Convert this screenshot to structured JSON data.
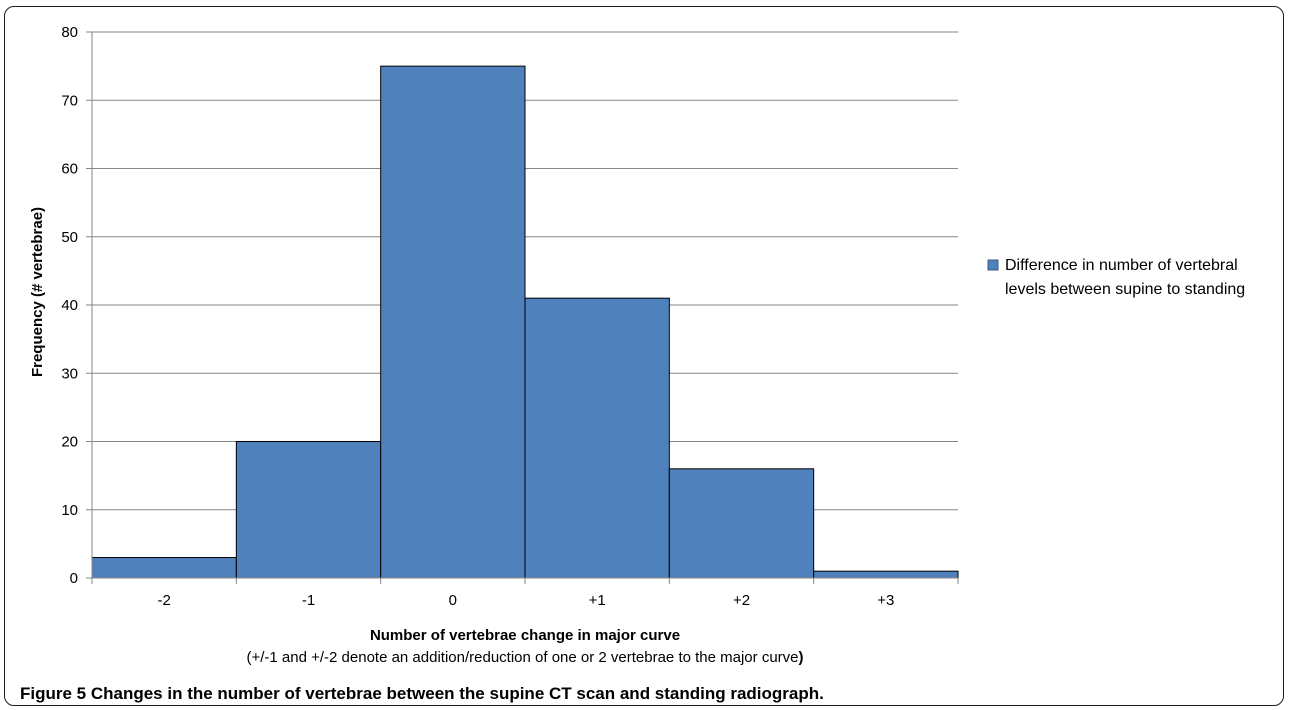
{
  "chart_data": {
    "type": "bar",
    "categories": [
      "-2",
      "-1",
      "0",
      "+1",
      "+2",
      "+3"
    ],
    "series": [
      {
        "name": "Difference in number of vertebral levels between supine to standing",
        "values": [
          3,
          20,
          75,
          41,
          16,
          1
        ],
        "color": "#4f81bd"
      }
    ],
    "ylabel": "Frequency (# vertebrae)",
    "xlabel": "Number of vertebrae change in major curve",
    "xlabel_note": "(+/-1 and +/-2 denote an addition/reduction of one or 2 vertebrae to the major curve",
    "xlabel_note_end": ")",
    "ylim": [
      0,
      80
    ],
    "yticks": [
      0,
      10,
      20,
      30,
      40,
      50,
      60,
      70,
      80
    ],
    "grid": true,
    "legend_position": "right",
    "legend_lines": [
      "Difference in number of vertebral",
      "levels between supine to standing"
    ]
  },
  "caption": {
    "label": "Figure 5",
    "text": " Changes in the number of vertebrae between the supine CT scan and standing radiograph."
  }
}
